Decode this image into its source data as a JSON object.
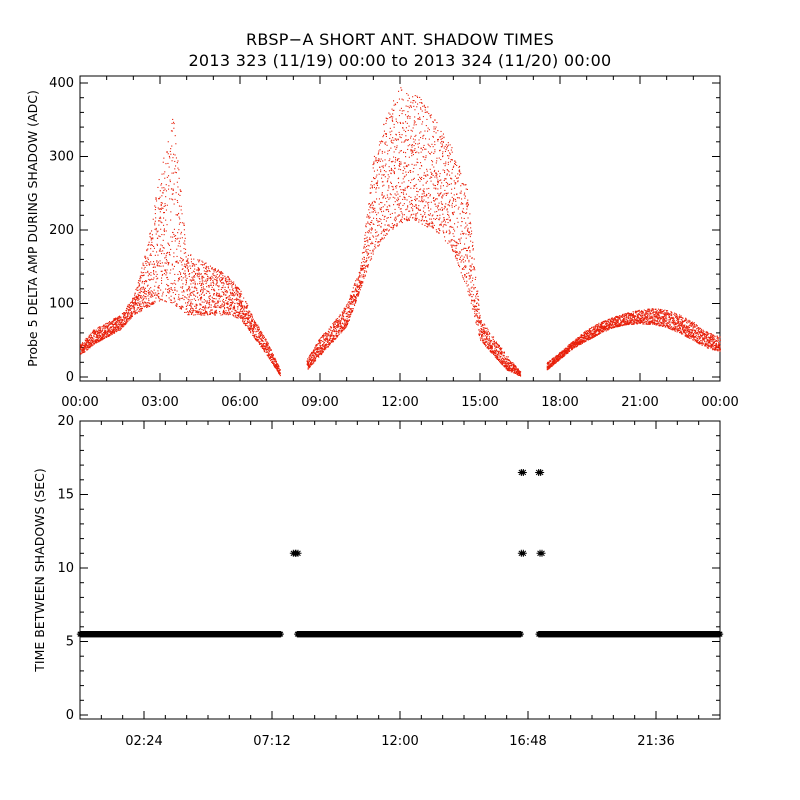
{
  "title": "RBSP−A SHORT ANT. SHADOW TIMES",
  "subtitle": "2013 323 (11/19) 00:00 to 2013 324 (11/20) 00:00",
  "chart_data": [
    {
      "type": "scatter",
      "ylabel": "Probe 5 DELTA AMP DURING SHADOW (ADC)",
      "xlabel": "",
      "xlim_hours": [
        0,
        24
      ],
      "ylim": [
        0,
        400
      ],
      "x_tick_labels": [
        "00:00",
        "03:00",
        "06:00",
        "09:00",
        "12:00",
        "15:00",
        "18:00",
        "21:00",
        "00:00"
      ],
      "y_tick_labels": [
        "0",
        "100",
        "200",
        "300",
        "400"
      ],
      "y_ticks": [
        0,
        100,
        200,
        300,
        400
      ],
      "marker_color": "#e8200a",
      "grid": false,
      "envelope_hours": [
        0,
        0.5,
        1,
        1.5,
        2,
        2.5,
        3,
        3.5,
        4,
        4.5,
        5,
        5.5,
        6,
        6.5,
        7,
        7.5,
        8,
        8.5,
        9,
        9.5,
        10,
        10.5,
        11,
        11.5,
        12,
        12.5,
        13,
        13.5,
        14,
        14.5,
        15,
        15.5,
        16,
        16.5,
        17,
        17.5,
        18,
        18.5,
        19,
        19.5,
        20,
        20.5,
        21,
        21.5,
        22,
        22.5,
        23,
        23.5,
        24
      ],
      "envelope_low": [
        30,
        45,
        55,
        65,
        85,
        95,
        105,
        100,
        85,
        85,
        85,
        85,
        80,
        55,
        30,
        2,
        null,
        10,
        30,
        50,
        70,
        120,
        170,
        195,
        210,
        215,
        205,
        195,
        170,
        120,
        50,
        30,
        10,
        2,
        null,
        10,
        25,
        40,
        50,
        60,
        68,
        72,
        73,
        72,
        68,
        60,
        50,
        40,
        35
      ],
      "envelope_high": [
        45,
        65,
        75,
        85,
        110,
        180,
        280,
        360,
        170,
        160,
        150,
        140,
        120,
        80,
        50,
        10,
        null,
        25,
        55,
        75,
        100,
        150,
        300,
        360,
        395,
        390,
        370,
        340,
        310,
        260,
        80,
        55,
        30,
        8,
        null,
        20,
        35,
        50,
        65,
        75,
        82,
        88,
        92,
        94,
        92,
        85,
        75,
        62,
        55
      ],
      "gaps_hours": [
        [
          7.6,
          8.3
        ],
        [
          16.6,
          17.3
        ]
      ]
    },
    {
      "type": "scatter",
      "ylabel": "TIME BETWEEN SHADOWS (SEC)",
      "xlabel": "",
      "xlim_hours": [
        0,
        24
      ],
      "ylim": [
        0,
        20
      ],
      "x_tick_labels": [
        "02:24",
        "07:12",
        "12:00",
        "16:48",
        "21:36"
      ],
      "x_ticks_hours": [
        2.4,
        7.2,
        12.0,
        16.8,
        21.6
      ],
      "y_tick_labels": [
        "0",
        "5",
        "10",
        "15",
        "20"
      ],
      "y_ticks": [
        0,
        5,
        10,
        15,
        20
      ],
      "marker": "asterisk",
      "marker_color": "#000000",
      "baseline_value": 5.5,
      "baseline_segments_hours": [
        [
          0,
          7.55
        ],
        [
          8.15,
          16.55
        ],
        [
          17.2,
          24
        ]
      ],
      "points": [
        {
          "x": 8.0,
          "y": 11
        },
        {
          "x": 8.1,
          "y": 11
        },
        {
          "x": 16.55,
          "y": 16.5
        },
        {
          "x": 17.2,
          "y": 16.5
        },
        {
          "x": 16.55,
          "y": 11
        },
        {
          "x": 17.25,
          "y": 11
        }
      ]
    }
  ]
}
